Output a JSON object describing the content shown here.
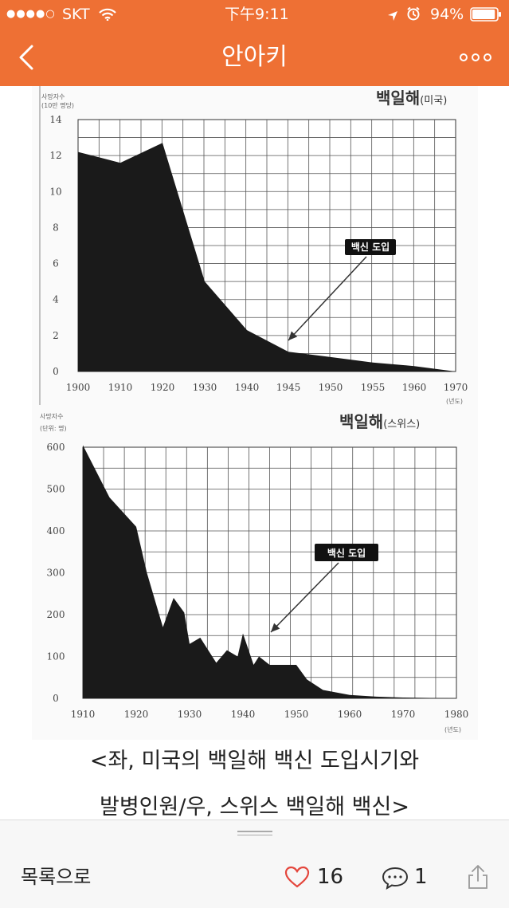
{
  "status_bar": {
    "signal": "●●●●○",
    "carrier": "SKT",
    "time": "下午9:11",
    "battery": "94%",
    "battery_level": 0.94
  },
  "nav": {
    "title": "안아키",
    "back_icon": "chevron-left-icon",
    "more_icon": "more-dots-icon"
  },
  "charts": {
    "us": {
      "title": "백일해",
      "title_suffix": "(미국)",
      "ylabel_line1": "사망자수",
      "ylabel_line2": "(10만 명당)",
      "xunit": "(년도)",
      "annotation": "백신 도입"
    },
    "swiss": {
      "title": "백일해",
      "title_suffix": "(스위스)",
      "ylabel_line1": "사망자수",
      "ylabel_line2": "(단위: 명)",
      "xunit": "(년도)",
      "annotation": "백신 도입"
    }
  },
  "chart_data": [
    {
      "type": "area",
      "title": "백일해(미국)",
      "ylabel": "사망자수",
      "xlabel": "(년도)",
      "x_ticks": [
        "1900",
        "1910",
        "1920",
        "1930",
        "1940",
        "1945",
        "1950",
        "1955",
        "1960",
        "1970"
      ],
      "y_ticks": [
        "0",
        "2",
        "4",
        "6",
        "8",
        "10",
        "12",
        "14"
      ],
      "ylim": [
        0,
        14
      ],
      "x": [
        1900,
        1910,
        1920,
        1930,
        1940,
        1945,
        1950,
        1955,
        1960,
        1970
      ],
      "values": [
        12.2,
        11.6,
        12.7,
        5.0,
        2.3,
        1.1,
        0.8,
        0.5,
        0.3,
        0.0
      ],
      "annotation": {
        "text": "백신 도입",
        "x": 1945
      },
      "grid": true
    },
    {
      "type": "area",
      "title": "백일해(스위스)",
      "ylabel": "사망자수",
      "xlabel": "(년도)",
      "x_ticks": [
        "1910",
        "1920",
        "1930",
        "1940",
        "1950",
        "1960",
        "1970",
        "1980"
      ],
      "y_ticks": [
        "0",
        "100",
        "200",
        "300",
        "400",
        "500",
        "600"
      ],
      "ylim": [
        0,
        600
      ],
      "x": [
        1910,
        1915,
        1920,
        1922,
        1925,
        1927,
        1929,
        1930,
        1932,
        1935,
        1937,
        1939,
        1940,
        1942,
        1943,
        1945,
        1950,
        1952,
        1955,
        1960,
        1965,
        1970,
        1975,
        1980
      ],
      "values": [
        605,
        480,
        410,
        300,
        170,
        240,
        205,
        130,
        145,
        85,
        115,
        100,
        155,
        80,
        100,
        80,
        80,
        45,
        20,
        8,
        4,
        2,
        1,
        0
      ],
      "annotation": {
        "text": "백신 도입",
        "x": 1945
      },
      "grid": true
    }
  ],
  "caption": {
    "line1": "<좌, 미국의 백일해 백신 도입시기와",
    "line2": "발병인원/우, 스위스 백일해 백신>"
  },
  "bottom_bar": {
    "back_to_list": "목록으로",
    "like_count": "16",
    "comment_count": "1",
    "like_icon": "heart-icon",
    "comment_icon": "comment-bubble-icon",
    "share_icon": "share-icon"
  }
}
